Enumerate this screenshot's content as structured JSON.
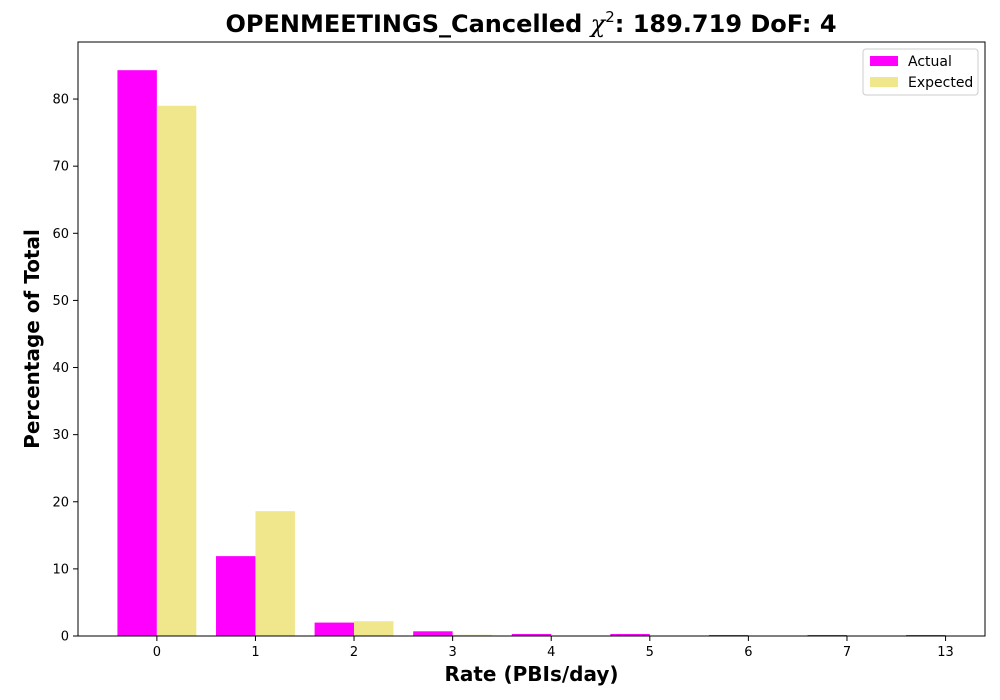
{
  "chart_data": {
    "type": "bar",
    "title_parts": {
      "prefix": "OPENMEETINGS_Cancelled ",
      "chi": "χ",
      "sup": "2",
      "suffix": ": 189.719 DoF: 4"
    },
    "xlabel": "Rate (PBIs/day)",
    "ylabel": "Percentage of Total",
    "categories": [
      "0",
      "1",
      "2",
      "3",
      "4",
      "5",
      "6",
      "7",
      "13"
    ],
    "ylim": [
      0,
      88.5
    ],
    "yticks": [
      0,
      10,
      20,
      30,
      40,
      50,
      60,
      70,
      80
    ],
    "grid": false,
    "legend_position": "top-right",
    "series": [
      {
        "name": "Actual",
        "color": "#ff00ff",
        "values": [
          84.3,
          11.9,
          2.0,
          0.7,
          0.3,
          0.3,
          0.15,
          0.15,
          0.15
        ]
      },
      {
        "name": "Expected",
        "color": "#f0e68c",
        "values": [
          79.0,
          18.6,
          2.2,
          0.18,
          0.01,
          0.0,
          0.0,
          0.0,
          0.0
        ]
      }
    ]
  }
}
